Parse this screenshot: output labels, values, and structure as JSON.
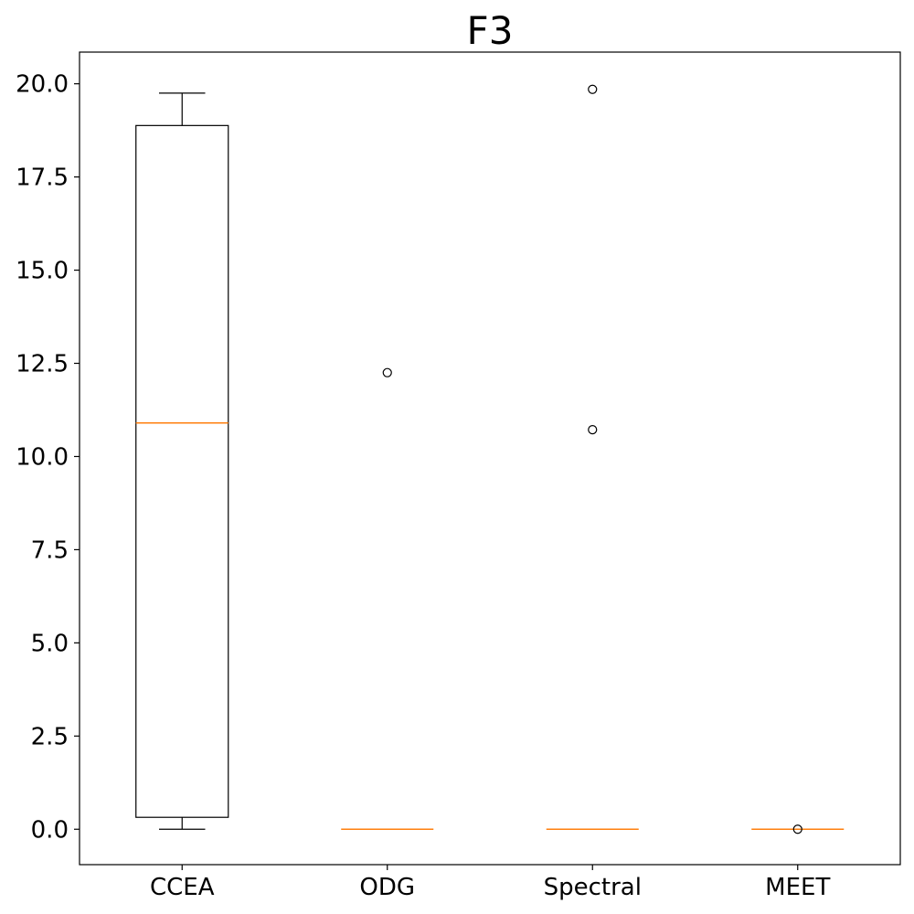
{
  "chart_data": {
    "type": "box",
    "title": "F3",
    "xlabel": "",
    "ylabel": "",
    "ylim": [
      -0.95,
      20.85
    ],
    "yticks": [
      0.0,
      2.5,
      5.0,
      7.5,
      10.0,
      12.5,
      15.0,
      17.5,
      20.0
    ],
    "ytick_labels": [
      "0.0",
      "2.5",
      "5.0",
      "7.5",
      "10.0",
      "12.5",
      "15.0",
      "17.5",
      "20.0"
    ],
    "categories": [
      "CCEA",
      "ODG",
      "Spectral",
      "MEET"
    ],
    "boxes": [
      {
        "label": "CCEA",
        "whisker_low": 0.0,
        "q1": 0.32,
        "median": 10.9,
        "q3": 18.88,
        "whisker_high": 19.75,
        "outliers": []
      },
      {
        "label": "ODG",
        "whisker_low": 0.0,
        "q1": 0.0,
        "median": 0.0,
        "q3": 0.0,
        "whisker_high": 0.0,
        "outliers": [
          12.25
        ]
      },
      {
        "label": "Spectral",
        "whisker_low": 0.0,
        "q1": 0.0,
        "median": 0.0,
        "q3": 0.0,
        "whisker_high": 0.0,
        "outliers": [
          19.85,
          10.72
        ]
      },
      {
        "label": "MEET",
        "whisker_low": 0.0,
        "q1": 0.0,
        "median": 0.0,
        "q3": 0.0,
        "whisker_high": 0.0,
        "outliers": [
          0.0
        ]
      }
    ],
    "colors": {
      "box": "#000000",
      "median": "#ff7f0e",
      "outlier": "#000000"
    },
    "grid": false
  }
}
